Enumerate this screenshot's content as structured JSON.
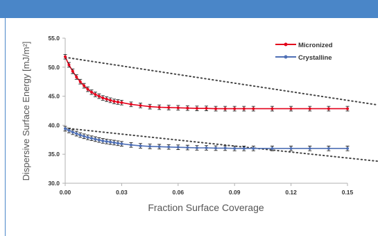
{
  "chart_data": {
    "type": "line",
    "xlabel": "Fraction Surface Coverage",
    "ylabel": "Dispersive Surface Energy [mJ/m²]",
    "xlim": [
      0.0,
      0.15
    ],
    "ylim": [
      30.0,
      55.0
    ],
    "x_ticks": [
      "0.00",
      "0.03",
      "0.06",
      "0.09",
      "0.12",
      "0.15"
    ],
    "y_ticks": [
      "30.0",
      "35.0",
      "40.0",
      "45.0",
      "50.0",
      "55.0"
    ],
    "grid": false,
    "legend_position": "top-right",
    "series": [
      {
        "name": "Micronized",
        "color": "#e3001b",
        "x": [
          0.0,
          0.002,
          0.004,
          0.006,
          0.008,
          0.01,
          0.012,
          0.014,
          0.016,
          0.018,
          0.02,
          0.022,
          0.024,
          0.026,
          0.028,
          0.03,
          0.035,
          0.04,
          0.045,
          0.05,
          0.055,
          0.06,
          0.065,
          0.07,
          0.075,
          0.08,
          0.085,
          0.09,
          0.095,
          0.1,
          0.11,
          0.12,
          0.13,
          0.14,
          0.15
        ],
        "y": [
          51.8,
          50.4,
          49.3,
          48.3,
          47.5,
          46.8,
          46.2,
          45.7,
          45.3,
          45.0,
          44.7,
          44.5,
          44.3,
          44.1,
          44.0,
          43.9,
          43.6,
          43.4,
          43.2,
          43.1,
          43.05,
          43.0,
          42.95,
          42.9,
          42.9,
          42.85,
          42.85,
          42.85,
          42.85,
          42.85,
          42.85,
          42.85,
          42.85,
          42.85,
          42.85
        ]
      },
      {
        "name": "Crystalline",
        "color": "#4e6fb5",
        "x": [
          0.0,
          0.002,
          0.004,
          0.006,
          0.008,
          0.01,
          0.012,
          0.014,
          0.016,
          0.018,
          0.02,
          0.022,
          0.024,
          0.026,
          0.028,
          0.03,
          0.035,
          0.04,
          0.045,
          0.05,
          0.055,
          0.06,
          0.065,
          0.07,
          0.075,
          0.08,
          0.085,
          0.09,
          0.095,
          0.1,
          0.11,
          0.12,
          0.13,
          0.14,
          0.15
        ],
        "y": [
          39.4,
          39.1,
          38.8,
          38.55,
          38.3,
          38.1,
          37.9,
          37.75,
          37.6,
          37.45,
          37.3,
          37.2,
          37.1,
          37.0,
          36.9,
          36.8,
          36.6,
          36.45,
          36.35,
          36.3,
          36.25,
          36.2,
          36.15,
          36.1,
          36.1,
          36.05,
          36.05,
          36.0,
          36.0,
          36.0,
          36.0,
          36.0,
          36.0,
          36.0,
          36.0
        ]
      }
    ],
    "trend_lines": [
      {
        "style": "dotted",
        "x": [
          0.0,
          0.166
        ],
        "y": [
          51.7,
          43.5
        ]
      },
      {
        "style": "dotted",
        "x": [
          0.0,
          0.166
        ],
        "y": [
          39.5,
          33.8
        ]
      }
    ],
    "error_bar_half_height": 0.4
  }
}
